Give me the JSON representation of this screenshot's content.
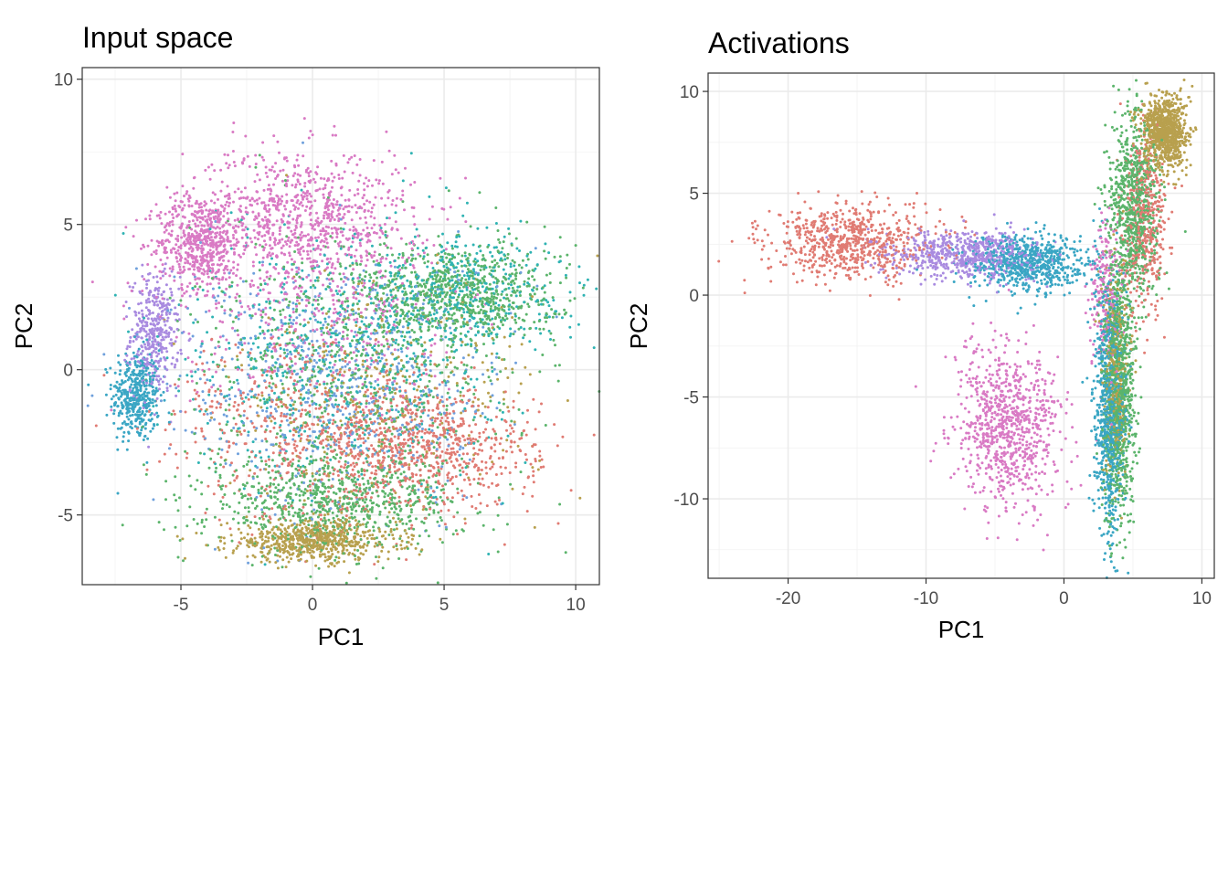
{
  "chart_data": [
    {
      "type": "scatter",
      "title": "Input space",
      "xlabel": "PC1",
      "ylabel": "PC2",
      "xlim": [
        -8.75,
        10.9
      ],
      "ylim": [
        -7.4,
        10.4
      ],
      "x_ticks": [
        -5,
        0,
        5,
        10
      ],
      "y_ticks": [
        -5,
        0,
        5,
        10
      ],
      "x_tick_labels": [
        "-5",
        "0",
        "5",
        "10"
      ],
      "y_tick_labels": [
        "-5",
        "0",
        "5",
        "10"
      ],
      "grid": true,
      "legend": "none",
      "palette": [
        "#e07b73",
        "#b8a04e",
        "#5bb46b",
        "#2fb3b3",
        "#6fa0dc",
        "#b48fe0",
        "#d97ac4"
      ],
      "clusters": [
        {
          "color": "#3aa6c4",
          "cx": -6.7,
          "cy": -0.9,
          "sx": 0.45,
          "sy": 0.8,
          "n": 420
        },
        {
          "color": "#a98be0",
          "cx": -6.0,
          "cy": 1.2,
          "sx": 0.45,
          "sy": 1.0,
          "n": 380
        },
        {
          "color": "#d97ac4",
          "cx": -4.3,
          "cy": 4.4,
          "sx": 0.8,
          "sy": 0.8,
          "n": 520
        },
        {
          "color": "#d97ac4",
          "cx": -0.5,
          "cy": 5.2,
          "sx": 2.2,
          "sy": 1.2,
          "n": 900
        },
        {
          "color": "#b8a04e",
          "cx": 0.0,
          "cy": -5.9,
          "sx": 1.6,
          "sy": 0.35,
          "n": 650
        },
        {
          "color": "#5bb46b",
          "cx": 0.8,
          "cy": -4.6,
          "sx": 2.4,
          "sy": 0.8,
          "n": 750
        },
        {
          "color": "#e07b73",
          "cx": 4.2,
          "cy": -2.8,
          "sx": 2.2,
          "sy": 1.0,
          "n": 700
        },
        {
          "color": "#5bb46b",
          "cx": 5.6,
          "cy": 2.6,
          "sx": 1.9,
          "sy": 0.9,
          "n": 750
        },
        {
          "color": "#2fb3b3",
          "cx": 5.5,
          "cy": 2.8,
          "sx": 2.0,
          "sy": 1.0,
          "n": 420
        },
        {
          "color": "#6fa0dc",
          "cx": 1.0,
          "cy": -0.5,
          "sx": 3.2,
          "sy": 2.2,
          "n": 700
        },
        {
          "color": "#5bb46b",
          "cx": 1.5,
          "cy": 0.0,
          "sx": 3.0,
          "sy": 2.2,
          "n": 650
        },
        {
          "color": "#2fb3b3",
          "cx": 1.0,
          "cy": 0.5,
          "sx": 3.0,
          "sy": 2.2,
          "n": 550
        },
        {
          "color": "#e07b73",
          "cx": 0.0,
          "cy": -2.0,
          "sx": 3.0,
          "sy": 1.6,
          "n": 500
        },
        {
          "color": "#b8a04e",
          "cx": 2.5,
          "cy": -1.0,
          "sx": 3.0,
          "sy": 2.0,
          "n": 350
        },
        {
          "color": "#d97ac4",
          "cx": 0.5,
          "cy": 1.5,
          "sx": 2.8,
          "sy": 1.5,
          "n": 350
        }
      ]
    },
    {
      "type": "scatter",
      "title": "Activations",
      "xlabel": "PC1",
      "ylabel": "PC2",
      "xlim": [
        -25.8,
        10.9
      ],
      "ylim": [
        -13.9,
        10.9
      ],
      "x_ticks": [
        -20,
        -10,
        0,
        10
      ],
      "y_ticks": [
        -10,
        -5,
        0,
        5,
        10
      ],
      "x_tick_labels": [
        "-20",
        "-10",
        "0",
        "10"
      ],
      "y_tick_labels": [
        "-10",
        "-5",
        "0",
        "5",
        "10"
      ],
      "grid": true,
      "legend": "none",
      "palette": [
        "#e07b73",
        "#b8a04e",
        "#5bb46b",
        "#2fb3b3",
        "#6fa0dc",
        "#b48fe0",
        "#d97ac4"
      ],
      "clusters": [
        {
          "color": "#e07b73",
          "cx": -15.5,
          "cy": 2.6,
          "sx": 3.0,
          "sy": 0.9,
          "n": 700
        },
        {
          "color": "#a98be0",
          "cx": -7.0,
          "cy": 2.0,
          "sx": 2.8,
          "sy": 0.6,
          "n": 650
        },
        {
          "color": "#3aa6c4",
          "cx": -2.5,
          "cy": 1.5,
          "sx": 2.2,
          "sy": 0.7,
          "n": 700
        },
        {
          "color": "#d97ac4",
          "cx": -4.0,
          "cy": -6.5,
          "sx": 1.9,
          "sy": 2.0,
          "n": 850
        },
        {
          "color": "#3aa6c4",
          "cx": 3.3,
          "cy": -5.5,
          "sx": 0.55,
          "sy": 3.0,
          "n": 800
        },
        {
          "color": "#5bb46b",
          "cx": 4.0,
          "cy": -4.5,
          "sx": 0.6,
          "sy": 3.2,
          "n": 900
        },
        {
          "color": "#b8a04e",
          "cx": 3.8,
          "cy": -3.5,
          "sx": 0.5,
          "sy": 2.5,
          "n": 350
        },
        {
          "color": "#e07b73",
          "cx": 5.8,
          "cy": 3.5,
          "sx": 0.8,
          "sy": 2.2,
          "n": 450
        },
        {
          "color": "#5bb46b",
          "cx": 5.0,
          "cy": 4.5,
          "sx": 0.9,
          "sy": 2.2,
          "n": 750
        },
        {
          "color": "#b8a04e",
          "cx": 7.3,
          "cy": 8.0,
          "sx": 0.8,
          "sy": 0.9,
          "n": 850
        },
        {
          "color": "#d97ac4",
          "cx": 3.0,
          "cy": 0.0,
          "sx": 0.6,
          "sy": 1.8,
          "n": 200
        }
      ]
    }
  ]
}
